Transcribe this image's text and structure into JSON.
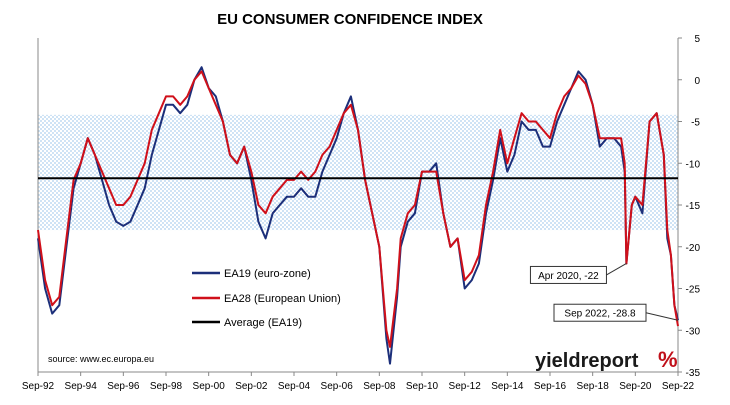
{
  "chart_data": {
    "type": "line",
    "title": "EU CONSUMER CONFIDENCE INDEX",
    "source": "source: www.ec.europa.eu",
    "brand": {
      "text_dark": "yieldreport",
      "text_accent": "%",
      "color_accent": "#c0101a"
    },
    "x_start": "1992-09",
    "x_end": "2022-09",
    "x_ticks": [
      "Sep-92",
      "Sep-94",
      "Sep-96",
      "Sep-98",
      "Sep-00",
      "Sep-02",
      "Sep-04",
      "Sep-06",
      "Sep-08",
      "Sep-10",
      "Sep-12",
      "Sep-14",
      "Sep-16",
      "Sep-18",
      "Sep-20",
      "Sep-22"
    ],
    "ylim": [
      -35,
      5
    ],
    "y_ticks": [
      5,
      0,
      -5,
      -10,
      -15,
      -20,
      -25,
      -30,
      -35
    ],
    "y_axis_side": "right",
    "shaded_band": {
      "from": -18,
      "to": -4.2,
      "color": "#cfe3f5"
    },
    "legend_position": "lower-left",
    "series": [
      {
        "name": "EA19 (euro-zone)",
        "color": "#1c2f7a",
        "points": [
          [
            "1992-09",
            -19
          ],
          [
            "1993-01",
            -25
          ],
          [
            "1993-05",
            -28
          ],
          [
            "1993-09",
            -27
          ],
          [
            "1994-01",
            -20
          ],
          [
            "1994-05",
            -13
          ],
          [
            "1994-09",
            -10
          ],
          [
            "1995-01",
            -7
          ],
          [
            "1995-05",
            -9
          ],
          [
            "1995-09",
            -12
          ],
          [
            "1996-01",
            -15
          ],
          [
            "1996-05",
            -17
          ],
          [
            "1996-09",
            -17.5
          ],
          [
            "1997-01",
            -17
          ],
          [
            "1997-05",
            -15
          ],
          [
            "1997-09",
            -13
          ],
          [
            "1998-01",
            -9
          ],
          [
            "1998-05",
            -6
          ],
          [
            "1998-09",
            -3
          ],
          [
            "1999-01",
            -3
          ],
          [
            "1999-05",
            -4
          ],
          [
            "1999-09",
            -3
          ],
          [
            "2000-01",
            0
          ],
          [
            "2000-05",
            1.5
          ],
          [
            "2000-09",
            -1
          ],
          [
            "2001-01",
            -2
          ],
          [
            "2001-05",
            -5
          ],
          [
            "2001-09",
            -9
          ],
          [
            "2002-01",
            -10
          ],
          [
            "2002-05",
            -8
          ],
          [
            "2002-09",
            -12
          ],
          [
            "2003-01",
            -17
          ],
          [
            "2003-05",
            -19
          ],
          [
            "2003-09",
            -16
          ],
          [
            "2004-01",
            -15
          ],
          [
            "2004-05",
            -14
          ],
          [
            "2004-09",
            -14
          ],
          [
            "2005-01",
            -13
          ],
          [
            "2005-05",
            -14
          ],
          [
            "2005-09",
            -14
          ],
          [
            "2006-01",
            -11
          ],
          [
            "2006-05",
            -9
          ],
          [
            "2006-09",
            -7
          ],
          [
            "2007-01",
            -4
          ],
          [
            "2007-05",
            -2
          ],
          [
            "2007-09",
            -6
          ],
          [
            "2008-01",
            -12
          ],
          [
            "2008-05",
            -16
          ],
          [
            "2008-09",
            -20
          ],
          [
            "2009-01",
            -31
          ],
          [
            "2009-03",
            -34
          ],
          [
            "2009-07",
            -26
          ],
          [
            "2009-09",
            -20
          ],
          [
            "2010-01",
            -17
          ],
          [
            "2010-05",
            -16
          ],
          [
            "2010-09",
            -11
          ],
          [
            "2011-01",
            -11
          ],
          [
            "2011-05",
            -10
          ],
          [
            "2011-09",
            -16
          ],
          [
            "2012-01",
            -20
          ],
          [
            "2012-05",
            -19
          ],
          [
            "2012-09",
            -25
          ],
          [
            "2013-01",
            -24
          ],
          [
            "2013-05",
            -22
          ],
          [
            "2013-09",
            -16
          ],
          [
            "2014-01",
            -12
          ],
          [
            "2014-05",
            -7
          ],
          [
            "2014-09",
            -11
          ],
          [
            "2015-01",
            -9
          ],
          [
            "2015-05",
            -5
          ],
          [
            "2015-09",
            -6
          ],
          [
            "2016-01",
            -6
          ],
          [
            "2016-05",
            -8
          ],
          [
            "2016-09",
            -8
          ],
          [
            "2017-01",
            -5
          ],
          [
            "2017-05",
            -3
          ],
          [
            "2017-09",
            -1
          ],
          [
            "2018-01",
            1
          ],
          [
            "2018-05",
            0
          ],
          [
            "2018-09",
            -3
          ],
          [
            "2019-01",
            -8
          ],
          [
            "2019-05",
            -7
          ],
          [
            "2019-09",
            -7
          ],
          [
            "2020-01",
            -8
          ],
          [
            "2020-03",
            -11
          ],
          [
            "2020-04",
            -22
          ],
          [
            "2020-07",
            -15
          ],
          [
            "2020-09",
            -14
          ],
          [
            "2021-01",
            -16
          ],
          [
            "2021-05",
            -5
          ],
          [
            "2021-09",
            -4
          ],
          [
            "2022-01",
            -9
          ],
          [
            "2022-03",
            -19
          ],
          [
            "2022-05",
            -21
          ],
          [
            "2022-07",
            -27
          ],
          [
            "2022-09",
            -28.8
          ]
        ]
      },
      {
        "name": "EA28 (European Union)",
        "color": "#d0101a",
        "points": [
          [
            "1992-09",
            -18
          ],
          [
            "1993-01",
            -24
          ],
          [
            "1993-05",
            -27
          ],
          [
            "1993-09",
            -26
          ],
          [
            "1994-01",
            -19
          ],
          [
            "1994-05",
            -12
          ],
          [
            "1994-09",
            -10
          ],
          [
            "1995-01",
            -7
          ],
          [
            "1995-05",
            -9
          ],
          [
            "1995-09",
            -11
          ],
          [
            "1996-01",
            -13
          ],
          [
            "1996-05",
            -15
          ],
          [
            "1996-09",
            -15
          ],
          [
            "1997-01",
            -14
          ],
          [
            "1997-05",
            -12
          ],
          [
            "1997-09",
            -10
          ],
          [
            "1998-01",
            -6
          ],
          [
            "1998-05",
            -4
          ],
          [
            "1998-09",
            -2
          ],
          [
            "1999-01",
            -2
          ],
          [
            "1999-05",
            -3
          ],
          [
            "1999-09",
            -2
          ],
          [
            "2000-01",
            0
          ],
          [
            "2000-05",
            1
          ],
          [
            "2000-09",
            -1
          ],
          [
            "2001-01",
            -3
          ],
          [
            "2001-05",
            -5
          ],
          [
            "2001-09",
            -9
          ],
          [
            "2002-01",
            -10
          ],
          [
            "2002-05",
            -8
          ],
          [
            "2002-09",
            -11
          ],
          [
            "2003-01",
            -15
          ],
          [
            "2003-05",
            -16
          ],
          [
            "2003-09",
            -14
          ],
          [
            "2004-01",
            -13
          ],
          [
            "2004-05",
            -12
          ],
          [
            "2004-09",
            -12
          ],
          [
            "2005-01",
            -11
          ],
          [
            "2005-05",
            -12
          ],
          [
            "2005-09",
            -11
          ],
          [
            "2006-01",
            -9
          ],
          [
            "2006-05",
            -8
          ],
          [
            "2006-09",
            -6
          ],
          [
            "2007-01",
            -4
          ],
          [
            "2007-05",
            -3
          ],
          [
            "2007-09",
            -6
          ],
          [
            "2008-01",
            -12
          ],
          [
            "2008-05",
            -16
          ],
          [
            "2008-09",
            -20
          ],
          [
            "2009-01",
            -30
          ],
          [
            "2009-03",
            -32
          ],
          [
            "2009-07",
            -25
          ],
          [
            "2009-09",
            -19
          ],
          [
            "2010-01",
            -16
          ],
          [
            "2010-05",
            -15
          ],
          [
            "2010-09",
            -11
          ],
          [
            "2011-01",
            -11
          ],
          [
            "2011-05",
            -11
          ],
          [
            "2011-09",
            -16
          ],
          [
            "2012-01",
            -20
          ],
          [
            "2012-05",
            -19
          ],
          [
            "2012-09",
            -24
          ],
          [
            "2013-01",
            -23
          ],
          [
            "2013-05",
            -21
          ],
          [
            "2013-09",
            -15
          ],
          [
            "2014-01",
            -11
          ],
          [
            "2014-05",
            -6
          ],
          [
            "2014-09",
            -10
          ],
          [
            "2015-01",
            -7
          ],
          [
            "2015-05",
            -4
          ],
          [
            "2015-09",
            -5
          ],
          [
            "2016-01",
            -5
          ],
          [
            "2016-05",
            -6
          ],
          [
            "2016-09",
            -7
          ],
          [
            "2017-01",
            -4
          ],
          [
            "2017-05",
            -2
          ],
          [
            "2017-09",
            -1
          ],
          [
            "2018-01",
            0.5
          ],
          [
            "2018-05",
            -0.5
          ],
          [
            "2018-09",
            -3
          ],
          [
            "2019-01",
            -7
          ],
          [
            "2019-05",
            -7
          ],
          [
            "2019-09",
            -7
          ],
          [
            "2020-01",
            -7
          ],
          [
            "2020-03",
            -10
          ],
          [
            "2020-04",
            -22
          ],
          [
            "2020-07",
            -15
          ],
          [
            "2020-09",
            -14
          ],
          [
            "2021-01",
            -15
          ],
          [
            "2021-05",
            -5
          ],
          [
            "2021-09",
            -4
          ],
          [
            "2022-01",
            -9
          ],
          [
            "2022-03",
            -18
          ],
          [
            "2022-05",
            -21
          ],
          [
            "2022-07",
            -27
          ],
          [
            "2022-09",
            -29.5
          ]
        ]
      },
      {
        "name": "Average (EA19)",
        "color": "#000000",
        "constant": -11.8
      }
    ],
    "annotations": [
      {
        "text": "Apr 2020, -22",
        "x": "2020-04",
        "y": -22
      },
      {
        "text": "Sep 2022, -28.8",
        "x": "2022-09",
        "y": -28.8
      }
    ]
  }
}
